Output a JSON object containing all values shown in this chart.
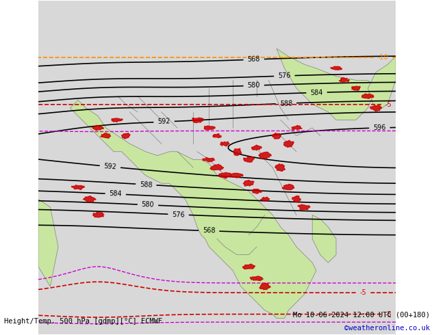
{
  "title_left": "Height/Temp. 500 hPa [gdmp][°C] ECMWF",
  "title_right": "Mo 10-06-2024 12:00 UTC (00+180)",
  "credit": "©weatheronline.co.uk",
  "background_land": "#c8e6a0",
  "background_sea": "#d8d8d8",
  "contour_color": "#000000",
  "temp_neg5_color": "#cc0000",
  "temp_neg10_color": "#ff8c00",
  "temp_neg15_color": "#ccaa00",
  "temp_neg20_color": "#88aa00",
  "temp_pos_color": "#cc00cc",
  "border_color": "#808080",
  "label_fontsize": 8,
  "credit_color": "#0000cc"
}
